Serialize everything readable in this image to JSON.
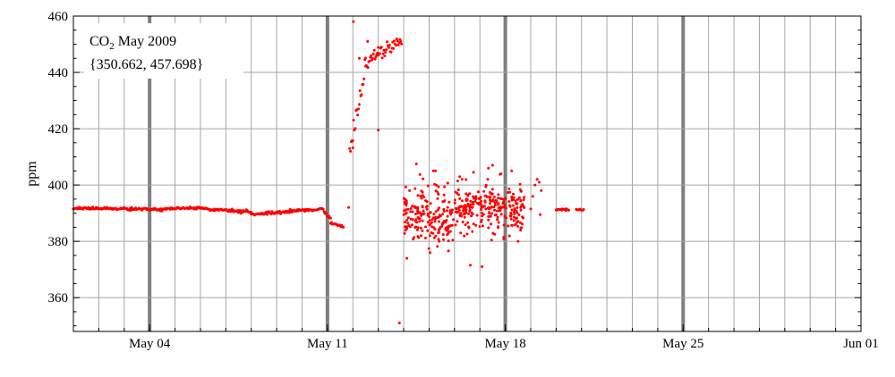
{
  "chart_data": {
    "type": "scatter",
    "title": "",
    "xlabel": "",
    "ylabel": "ppm",
    "xlim": [
      "2009-05-01",
      "2009-06-01"
    ],
    "ylim": [
      348,
      460
    ],
    "grid": "vertical daily lines, horizontal every 20 ppm; heavy lines on Mondays",
    "legend": {
      "position": "top-left",
      "line1_main": "CO",
      "line1_sub": "2",
      "line1_rest": " May 2009",
      "line2": "{350.662, 457.698}"
    },
    "x_ticks": [
      {
        "date": "2009-05-04",
        "label": "May 04"
      },
      {
        "date": "2009-05-11",
        "label": "May 11"
      },
      {
        "date": "2009-05-18",
        "label": "May 18"
      },
      {
        "date": "2009-05-25",
        "label": "May 25"
      },
      {
        "date": "2009-06-01",
        "label": "Jun 01"
      }
    ],
    "y_ticks": [
      360,
      380,
      400,
      420,
      440,
      460
    ],
    "marker_color": "#ff0000",
    "series": [
      {
        "name": "",
        "segments": [
          {
            "from": "2009-05-01T00:00",
            "to": "2009-05-03T00:00",
            "start": 391.8,
            "end": 391.6,
            "noise": 0.4
          },
          {
            "from": "2009-05-03T00:00",
            "to": "2009-05-04T12:00",
            "start": 391.5,
            "end": 391.3,
            "noise": 0.4
          },
          {
            "from": "2009-05-04T12:00",
            "to": "2009-05-06T00:00",
            "start": 391.6,
            "end": 392.0,
            "noise": 0.4
          },
          {
            "from": "2009-05-06T00:00",
            "to": "2009-05-07T06:00",
            "start": 391.6,
            "end": 390.9,
            "noise": 0.5
          },
          {
            "from": "2009-05-07T06:00",
            "to": "2009-05-08T00:00",
            "start": 390.8,
            "end": 390.4,
            "noise": 0.5
          },
          {
            "from": "2009-05-08T00:00",
            "to": "2009-05-08T12:00",
            "start": 389.8,
            "end": 389.8,
            "noise": 0.4
          },
          {
            "from": "2009-05-08T12:00",
            "to": "2009-05-09T12:00",
            "start": 389.9,
            "end": 390.5,
            "noise": 0.4
          },
          {
            "from": "2009-05-09T12:00",
            "to": "2009-05-10T20:00",
            "start": 390.8,
            "end": 391.4,
            "noise": 0.4
          },
          {
            "from": "2009-05-10T20:00",
            "to": "2009-05-11T03:00",
            "start": 391.2,
            "end": 388.0,
            "noise": 0.5
          },
          {
            "from": "2009-05-11T03:00",
            "to": "2009-05-11T15:00",
            "start": 386.5,
            "end": 385.2,
            "noise": 0.3
          },
          {
            "from": "2009-05-11T21:00",
            "to": "2009-05-12T00:00",
            "start": 410.0,
            "end": 416.0,
            "noise": 3.0
          },
          {
            "from": "2009-05-12T00:00",
            "to": "2009-05-12T12:00",
            "start": 418.0,
            "end": 441.0,
            "noise": 4.0
          },
          {
            "from": "2009-05-12T12:00",
            "to": "2009-05-13T00:00",
            "start": 442.0,
            "end": 448.0,
            "noise": 2.5
          },
          {
            "from": "2009-05-13T00:00",
            "to": "2009-05-13T22:00",
            "start": 447.0,
            "end": 451.0,
            "noise": 2.2
          },
          {
            "from": "2009-05-20T00:00",
            "to": "2009-05-20T12:00",
            "start": 391.2,
            "end": 391.4,
            "noise": 0.3
          },
          {
            "from": "2009-05-20T19:00",
            "to": "2009-05-21T02:00",
            "start": 391.2,
            "end": 391.3,
            "noise": 0.3
          }
        ],
        "scatter_ranges": [
          {
            "from": "2009-05-14T00:00",
            "to": "2009-05-15T00:00",
            "mean": 390,
            "spread": 10
          },
          {
            "from": "2009-05-15T00:00",
            "to": "2009-05-16T00:00",
            "mean": 389,
            "spread": 9
          },
          {
            "from": "2009-05-16T00:00",
            "to": "2009-05-17T00:00",
            "mean": 392,
            "spread": 8
          },
          {
            "from": "2009-05-17T00:00",
            "to": "2009-05-18T00:00",
            "mean": 391,
            "spread": 9
          },
          {
            "from": "2009-05-18T00:00",
            "to": "2009-05-18T18:00",
            "mean": 391,
            "spread": 8
          }
        ],
        "points": [
          {
            "x": "2009-05-11T20:00",
            "y": 392.0
          },
          {
            "x": "2009-05-12T00:30",
            "y": 458.0
          },
          {
            "x": "2009-05-12T06:00",
            "y": 445.0
          },
          {
            "x": "2009-05-12T14:00",
            "y": 451.0
          },
          {
            "x": "2009-05-13T00:00",
            "y": 419.5
          },
          {
            "x": "2009-05-13T20:00",
            "y": 351.0
          },
          {
            "x": "2009-05-14T03:00",
            "y": 374.0
          },
          {
            "x": "2009-05-14T12:00",
            "y": 407.5
          },
          {
            "x": "2009-05-15T01:00",
            "y": 376.0
          },
          {
            "x": "2009-05-15T04:00",
            "y": 405.0
          },
          {
            "x": "2009-05-15T06:00",
            "y": 405.0
          },
          {
            "x": "2009-05-16T05:00",
            "y": 403.0
          },
          {
            "x": "2009-05-16T15:00",
            "y": 371.5
          },
          {
            "x": "2009-05-16T18:00",
            "y": 404.5
          },
          {
            "x": "2009-05-17T02:00",
            "y": 371.0
          },
          {
            "x": "2009-05-17T08:00",
            "y": 406.0
          },
          {
            "x": "2009-05-17T12:00",
            "y": 407.0
          },
          {
            "x": "2009-05-17T20:00",
            "y": 404.0
          },
          {
            "x": "2009-05-18T06:00",
            "y": 405.0
          },
          {
            "x": "2009-05-18T12:00",
            "y": 380.0
          },
          {
            "x": "2009-05-19T00:00",
            "y": 391.5
          },
          {
            "x": "2009-05-19T02:00",
            "y": 396.0
          },
          {
            "x": "2009-05-19T04:00",
            "y": 400.0
          },
          {
            "x": "2009-05-19T06:00",
            "y": 402.0
          },
          {
            "x": "2009-05-19T08:00",
            "y": 401.0
          },
          {
            "x": "2009-05-19T09:00",
            "y": 389.5
          },
          {
            "x": "2009-05-19T10:00",
            "y": 398.0
          }
        ]
      }
    ]
  }
}
